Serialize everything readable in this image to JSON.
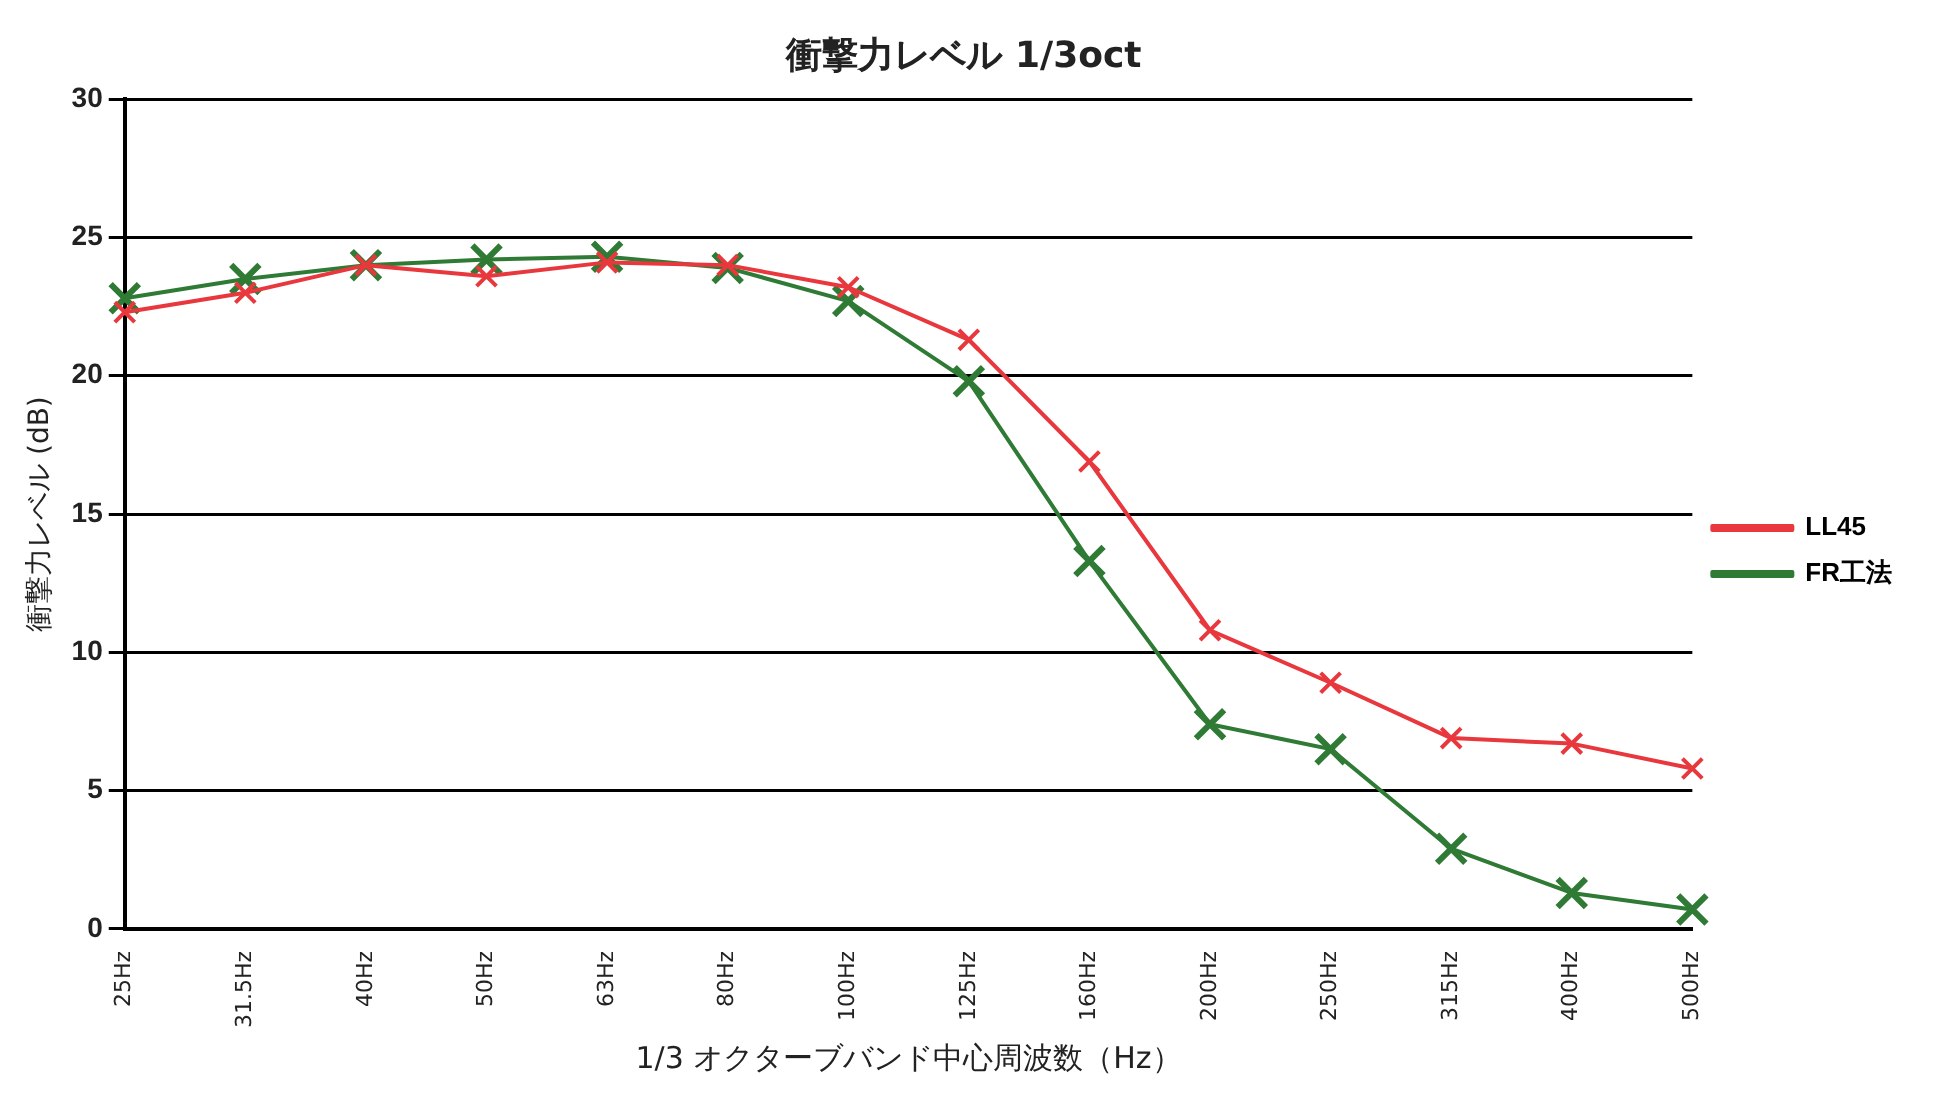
{
  "chart_data": {
    "type": "line",
    "title": "衝撃力レベル 1/3oct",
    "xlabel": "1/3 オクターブバンド中心周波数（Hz）",
    "ylabel": "衝撃力レベル (dB)",
    "categories": [
      "25Hz",
      "31.5Hz",
      "40Hz",
      "50Hz",
      "63Hz",
      "80Hz",
      "100Hz",
      "125Hz",
      "160Hz",
      "200Hz",
      "250Hz",
      "315Hz",
      "400Hz",
      "500Hz"
    ],
    "series": [
      {
        "name": "LL45",
        "color": "#e8383d",
        "values": [
          22.3,
          23.0,
          24.0,
          23.6,
          24.1,
          24.0,
          23.2,
          21.3,
          16.9,
          10.8,
          8.9,
          6.9,
          6.7,
          5.8
        ]
      },
      {
        "name": "FR工法",
        "color": "#2f7a34",
        "values": [
          22.8,
          23.5,
          24.0,
          24.2,
          24.3,
          23.9,
          22.7,
          19.8,
          13.3,
          7.4,
          6.5,
          2.9,
          1.3,
          0.7
        ]
      }
    ],
    "ylim": [
      0,
      30
    ],
    "yticks": [
      0,
      5,
      10,
      15,
      20,
      25,
      30
    ],
    "grid": "y",
    "legend": "right",
    "marker": "cross",
    "line_style": "solid"
  }
}
